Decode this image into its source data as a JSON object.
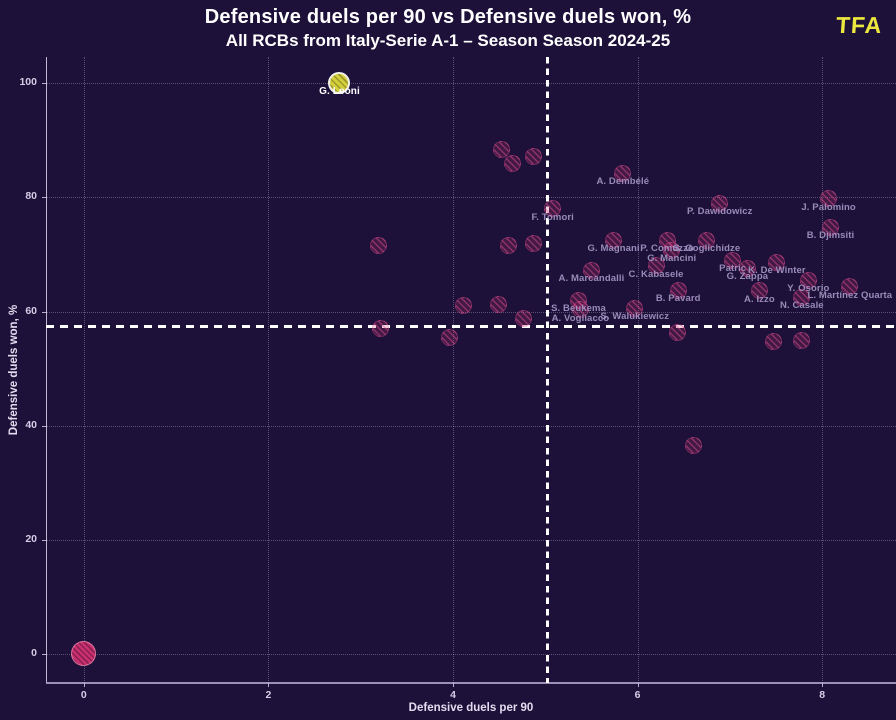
{
  "header": {
    "title": "Defensive duels per 90 vs Defensive duels won, %",
    "subtitle": "All RCBs from Italy-Serie A-1 – Season Season 2024-25",
    "logo": "TFA"
  },
  "chart_data": {
    "type": "scatter",
    "title": "Defensive duels per 90 vs Defensive duels won, %",
    "subtitle": "All RCBs from Italy-Serie A-1 – Season Season 2024-25",
    "xlabel": "Defensive duels per 90",
    "ylabel": "Defensive duels won, %",
    "xlim": [
      -0.41,
      8.8
    ],
    "ylim": [
      -5.1,
      104.6
    ],
    "x_ticks": [
      0,
      2,
      4,
      6,
      8
    ],
    "y_ticks": [
      0,
      20,
      40,
      60,
      80,
      100
    ],
    "grid": "dotted",
    "legend": "none",
    "avg_line_x": 5.02,
    "avg_line_y": 57.4,
    "colors": {
      "background": "#1e1139",
      "point": "#c9306f",
      "highlight_pink": "#c9306f",
      "highlight_yellow": "#d4cf3c",
      "avg_line": "#ffffff",
      "label": "#a396c4",
      "logo_yellow": "#ece73e"
    },
    "points": [
      {
        "label": "G. Leoni",
        "x": 2.77,
        "y": 100.0,
        "highlight": "yellow"
      },
      {
        "label": "",
        "x": 0.0,
        "y": 0.0,
        "highlight": "pink"
      },
      {
        "label": "A. Dembélé",
        "x": 5.84,
        "y": 84.2
      },
      {
        "label": "F. Tomori",
        "x": 5.08,
        "y": 78.0
      },
      {
        "label": "P. Dawidowicz",
        "x": 6.89,
        "y": 79.0
      },
      {
        "label": "J. Palomino",
        "x": 8.07,
        "y": 79.8
      },
      {
        "label": "B. Djimsiti",
        "x": 8.09,
        "y": 74.8
      },
      {
        "label": "G. Magnani",
        "x": 5.74,
        "y": 72.5
      },
      {
        "label": "P. Comuzzo",
        "x": 6.32,
        "y": 72.5
      },
      {
        "label": "S. Goglichidze",
        "x": 6.75,
        "y": 72.5
      },
      {
        "label": "G. Mancini",
        "x": 6.37,
        "y": 70.7
      },
      {
        "label": "A. Marcandalli",
        "x": 5.5,
        "y": 67.2
      },
      {
        "label": "C. Kabasele",
        "x": 6.2,
        "y": 68.0
      },
      {
        "label": "Patric",
        "x": 7.03,
        "y": 69.0
      },
      {
        "label": "K. De Winter",
        "x": 7.51,
        "y": 68.6
      },
      {
        "label": "G. Zappa",
        "x": 7.19,
        "y": 67.6
      },
      {
        "label": "B. Pavard",
        "x": 6.44,
        "y": 63.7
      },
      {
        "label": "Y. Osorio",
        "x": 7.85,
        "y": 65.5
      },
      {
        "label": "L. Martínez Quarta",
        "x": 8.3,
        "y": 64.3
      },
      {
        "label": "A. Izzo",
        "x": 7.32,
        "y": 63.6
      },
      {
        "label": "N. Casale",
        "x": 7.78,
        "y": 62.5
      },
      {
        "label": "S. Beukema",
        "x": 5.36,
        "y": 62.0
      },
      {
        "label": "A. Vogliacco",
        "x": 5.38,
        "y": 60.3
      },
      {
        "label": "S. Walukiewicz",
        "x": 5.97,
        "y": 60.6
      },
      {
        "label": "",
        "x": 4.53,
        "y": 88.4
      },
      {
        "label": "",
        "x": 4.64,
        "y": 86.0
      },
      {
        "label": "",
        "x": 4.87,
        "y": 87.1
      },
      {
        "label": "",
        "x": 3.19,
        "y": 71.5
      },
      {
        "label": "",
        "x": 4.6,
        "y": 71.5
      },
      {
        "label": "",
        "x": 4.87,
        "y": 72.0
      },
      {
        "label": "",
        "x": 4.11,
        "y": 61.0
      },
      {
        "label": "",
        "x": 4.49,
        "y": 61.3
      },
      {
        "label": "",
        "x": 4.76,
        "y": 58.7
      },
      {
        "label": "",
        "x": 3.21,
        "y": 57.1
      },
      {
        "label": "",
        "x": 3.96,
        "y": 55.5
      },
      {
        "label": "",
        "x": 6.43,
        "y": 56.4
      },
      {
        "label": "",
        "x": 7.47,
        "y": 54.8
      },
      {
        "label": "",
        "x": 7.78,
        "y": 55.0
      },
      {
        "label": "",
        "x": 6.61,
        "y": 36.6
      }
    ]
  }
}
